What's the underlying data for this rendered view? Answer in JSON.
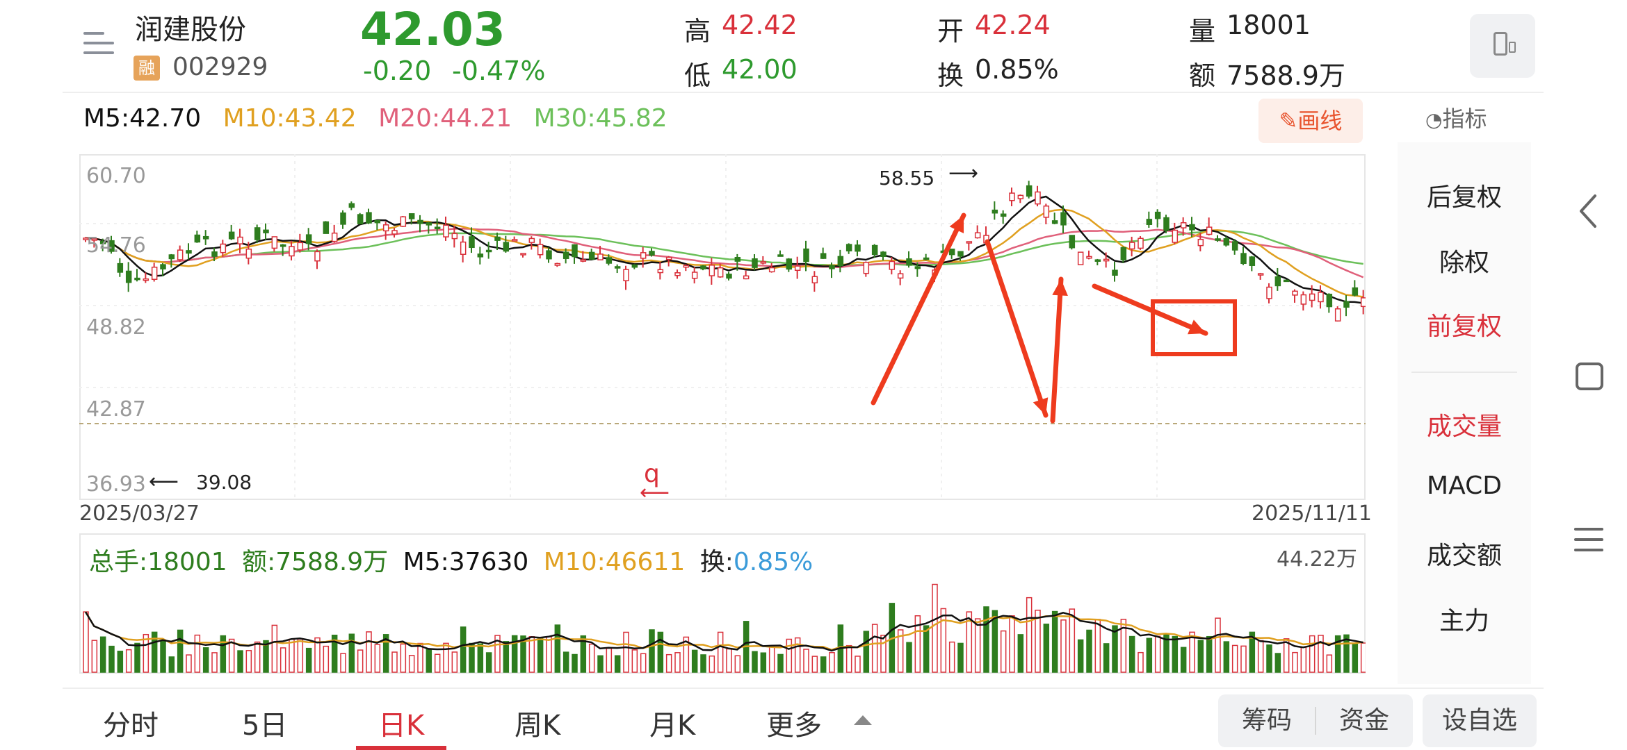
{
  "header": {
    "name": "润建股份",
    "badge": "融",
    "code": "002929",
    "price": "42.03",
    "change": "-0.20",
    "change_pct": "-0.47%",
    "high_label": "高",
    "high": "42.42",
    "low_label": "低",
    "low": "42.00",
    "open_label": "开",
    "open": "42.24",
    "turnover_label": "换",
    "turnover": "0.85%",
    "volume_label": "量",
    "volume": "18001",
    "amount_label": "额",
    "amount": "7588.9万"
  },
  "ma": {
    "m5": "M5:42.70",
    "m10": "M10:43.42",
    "m20": "M20:44.21",
    "m30": "M30:45.82"
  },
  "toolbar": {
    "draw_label": "画线",
    "indicator_label": "指标"
  },
  "kline": {
    "y_labels": [
      "60.70",
      "54.76",
      "48.82",
      "42.87",
      "36.93"
    ],
    "max_label": "58.55",
    "min_label": "39.08",
    "start_date": "2025/03/27",
    "end_date": "2025/11/11",
    "annotation": "q"
  },
  "volume": {
    "total": "总手:18001",
    "amount": "额:7588.9万",
    "m5": "M5:37630",
    "m10": "M10:46611",
    "turnover_label": "换:",
    "turnover_value": "0.85%",
    "max_label": "44.22万"
  },
  "right_panel": {
    "items": [
      "后复权",
      "除权",
      "前复权",
      "成交量",
      "MACD",
      "成交额",
      "主力"
    ],
    "active": [
      "前复权",
      "成交量"
    ]
  },
  "tabs": [
    "分时",
    "5日",
    "日K",
    "周K",
    "月K",
    "更多"
  ],
  "active_tab": "日K",
  "buttons": {
    "chouma": "筹码",
    "zijin": "资金",
    "add_watch": "设自选"
  },
  "colors": {
    "up": "#d9303a",
    "down": "#2e7d1e",
    "ma5": "#111111",
    "ma10": "#e0a020",
    "ma20": "#e0607a",
    "ma30": "#6cc05a",
    "annotation": "#ee3b1e"
  }
}
